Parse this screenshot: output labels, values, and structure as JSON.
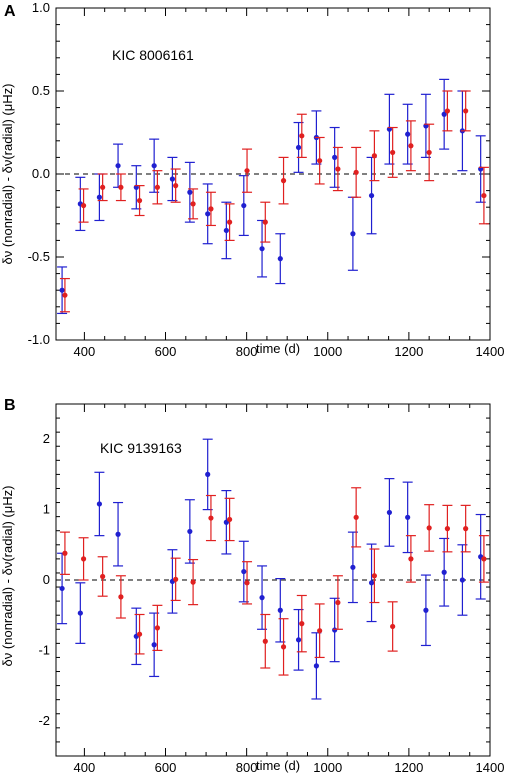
{
  "chart_data": [
    {
      "type": "scatter",
      "panel_label": "A",
      "title": "KIC 8006161",
      "xlabel": "time (d)",
      "ylabel": "δν (nonradial) - δν(radial)  (μHz)",
      "xlim": [
        330,
        1400
      ],
      "ylim": [
        -1.0,
        1.0
      ],
      "xticks": [
        400,
        600,
        800,
        1000,
        1200,
        1400
      ],
      "yticks": [
        -1.0,
        -0.5,
        0.0,
        0.5,
        1.0
      ],
      "yticklabels": [
        "-1.0",
        "-0.5",
        "0.0",
        "0.5",
        "1.0"
      ],
      "reference_line": 0,
      "series": [
        {
          "color": "#2020d0",
          "x": [
            345,
            390,
            437,
            483,
            528,
            572,
            617,
            660,
            704,
            750,
            793,
            838,
            883,
            928,
            972,
            1017,
            1062,
            1108,
            1152,
            1197,
            1242,
            1287,
            1332,
            1377
          ],
          "y": [
            -0.7,
            -0.18,
            -0.14,
            0.05,
            -0.08,
            0.05,
            -0.03,
            -0.11,
            -0.24,
            -0.34,
            -0.19,
            -0.45,
            -0.51,
            0.16,
            0.22,
            0.1,
            -0.36,
            -0.13,
            0.27,
            0.24,
            0.29,
            0.36,
            0.26,
            0.03
          ],
          "err": [
            0.14,
            0.16,
            0.14,
            0.13,
            0.13,
            0.16,
            0.13,
            0.18,
            0.18,
            0.17,
            0.18,
            0.17,
            0.15,
            0.15,
            0.16,
            0.18,
            0.22,
            0.23,
            0.21,
            0.18,
            0.19,
            0.21,
            0.24,
            0.2
          ]
        },
        {
          "color": "#e02020",
          "x": [
            352,
            398,
            445,
            490,
            536,
            580,
            625,
            668,
            712,
            758,
            801,
            846,
            891,
            936,
            980,
            1025,
            1070,
            1115,
            1160,
            1205,
            1250,
            1295,
            1340,
            1385
          ],
          "y": [
            -0.73,
            -0.19,
            -0.08,
            -0.08,
            -0.16,
            -0.08,
            -0.07,
            -0.18,
            -0.21,
            -0.29,
            0.02,
            -0.29,
            -0.04,
            0.23,
            0.08,
            0.03,
            0.01,
            0.11,
            0.13,
            0.17,
            0.13,
            0.38,
            0.38,
            -0.13
          ]
        }
      ],
      "red_err": [
        0.1,
        0.1,
        0.08,
        0.08,
        0.09,
        0.1,
        0.1,
        0.09,
        0.1,
        0.11,
        0.13,
        0.12,
        0.14,
        0.13,
        0.14,
        0.13,
        0.15,
        0.15,
        0.15,
        0.15,
        0.17,
        0.12,
        0.12,
        0.17
      ]
    },
    {
      "type": "scatter",
      "panel_label": "B",
      "title": "KIC 9139163",
      "xlabel": "time (d)",
      "ylabel": "δν (nonradial) - δν(radial)  (μHz)",
      "xlim": [
        330,
        1400
      ],
      "ylim": [
        -2.5,
        2.5
      ],
      "xticks": [
        400,
        600,
        800,
        1000,
        1200,
        1400
      ],
      "yticks": [
        -2,
        -1,
        0,
        1,
        2
      ],
      "yticklabels": [
        "-2",
        "-1",
        "0",
        "1",
        "2"
      ],
      "reference_line": 0,
      "series": [
        {
          "color": "#2020d0",
          "x": [
            345,
            390,
            437,
            483,
            528,
            572,
            617,
            660,
            704,
            750,
            793,
            838,
            883,
            928,
            972,
            1017,
            1062,
            1108,
            1152,
            1197,
            1242,
            1287,
            1332,
            1377
          ],
          "y": [
            -0.12,
            -0.47,
            1.08,
            0.65,
            -0.8,
            -0.92,
            -0.02,
            0.69,
            1.5,
            0.82,
            0.12,
            -0.25,
            -0.43,
            -0.85,
            -1.22,
            -0.71,
            0.18,
            -0.04,
            0.96,
            0.89,
            -0.43,
            0.11,
            0.0,
            0.33
          ]
        },
        {
          "color": "#e02020",
          "x": [
            352,
            398,
            445,
            490,
            536,
            580,
            625,
            668,
            712,
            758,
            801,
            846,
            891,
            936,
            980,
            1025,
            1070,
            1115,
            1160,
            1205,
            1250,
            1295,
            1340,
            1385
          ],
          "y": [
            0.38,
            0.3,
            0.05,
            -0.24,
            -0.77,
            -0.68,
            0.01,
            -0.03,
            0.88,
            0.86,
            -0.04,
            -0.87,
            -0.95,
            -0.62,
            -0.72,
            -0.32,
            0.89,
            0.06,
            -0.66,
            0.3,
            0.74,
            0.73,
            0.73,
            0.3
          ]
        }
      ],
      "blue_err": [
        0.5,
        0.43,
        0.45,
        0.45,
        0.4,
        0.45,
        0.45,
        0.45,
        0.5,
        0.45,
        0.43,
        0.45,
        0.45,
        0.43,
        0.47,
        0.45,
        0.5,
        0.55,
        0.48,
        0.5,
        0.5,
        0.48,
        0.5,
        0.6
      ],
      "red_err": [
        0.3,
        0.3,
        0.28,
        0.3,
        0.28,
        0.32,
        0.3,
        0.32,
        0.32,
        0.3,
        0.3,
        0.38,
        0.4,
        0.4,
        0.38,
        0.38,
        0.42,
        0.38,
        0.35,
        0.33,
        0.33,
        0.33,
        0.33,
        0.33
      ]
    }
  ]
}
